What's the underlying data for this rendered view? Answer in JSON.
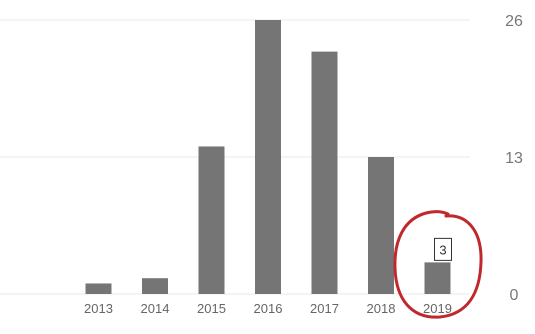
{
  "chart_data": {
    "type": "bar",
    "title": "",
    "xlabel": "",
    "ylabel": "",
    "categories": [
      "2013",
      "2014",
      "2015",
      "2016",
      "2017",
      "2018",
      "2019"
    ],
    "values": [
      1,
      1.5,
      14,
      26,
      23,
      13,
      3
    ],
    "ylim": [
      0,
      26
    ],
    "y_ticks": [
      0,
      13,
      26
    ],
    "grid": true,
    "y_axis_side": "right",
    "bar_color": "#757575",
    "grid_color": "#e8e8e8",
    "annotations": [
      {
        "category": "2019",
        "text": "3",
        "style": "boxed data label"
      },
      {
        "category": "2019",
        "shape": "red hand-drawn circle",
        "color": "#c0282d"
      }
    ]
  }
}
